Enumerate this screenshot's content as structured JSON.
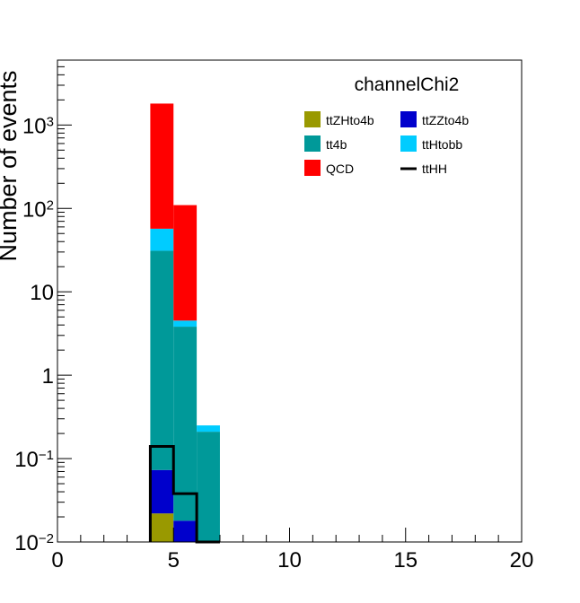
{
  "chart_data": {
    "type": "bar",
    "stacked": true,
    "title": "channelChi2",
    "xlabel": "",
    "ylabel": "Number of events",
    "xlim": [
      0,
      20
    ],
    "ylim": [
      0.01,
      6000
    ],
    "yscale": "log",
    "bin_width": 1,
    "x_ticks": [
      "0",
      "5",
      "10",
      "15",
      "20"
    ],
    "y_ticks": [
      {
        "value": 0.01,
        "base": "10",
        "exp": "−2"
      },
      {
        "value": 0.1,
        "base": "10",
        "exp": "−1"
      },
      {
        "value": 1,
        "base": "1",
        "exp": ""
      },
      {
        "value": 10,
        "base": "10",
        "exp": ""
      },
      {
        "value": 100,
        "base": "10",
        "exp": "2"
      },
      {
        "value": 1000,
        "base": "10",
        "exp": "3"
      }
    ],
    "grid": false,
    "legend_position": "top-right",
    "stack_order": [
      "ttZHto4b",
      "ttZZto4b",
      "tt4b",
      "ttHtobb",
      "QCD"
    ],
    "series": [
      {
        "name": "ttZHto4b",
        "color": "#999900",
        "bins": [
          {
            "x": 4,
            "value": 0.022
          },
          {
            "x": 5,
            "value": 0.0
          },
          {
            "x": 6,
            "value": 0.0
          }
        ]
      },
      {
        "name": "ttZZto4b",
        "color": "#0000cc",
        "bins": [
          {
            "x": 4,
            "value": 0.051
          },
          {
            "x": 5,
            "value": 0.018
          },
          {
            "x": 6,
            "value": 0.0
          }
        ]
      },
      {
        "name": "tt4b",
        "color": "#009999",
        "bins": [
          {
            "x": 4,
            "value": 31
          },
          {
            "x": 5,
            "value": 3.8
          },
          {
            "x": 6,
            "value": 0.21
          }
        ]
      },
      {
        "name": "ttHtobb",
        "color": "#00ccff",
        "bins": [
          {
            "x": 4,
            "value": 26
          },
          {
            "x": 5,
            "value": 0.7
          },
          {
            "x": 6,
            "value": 0.04
          }
        ]
      },
      {
        "name": "QCD",
        "color": "#ff0000",
        "bins": [
          {
            "x": 4,
            "value": 1750
          },
          {
            "x": 5,
            "value": 105
          },
          {
            "x": 6,
            "value": 0.0
          }
        ]
      }
    ],
    "overlay": {
      "name": "ttHH",
      "color": "#000000",
      "bins": [
        {
          "x": 4,
          "value": 0.14
        },
        {
          "x": 5,
          "value": 0.038
        },
        {
          "x": 6,
          "value": 0.0
        }
      ]
    },
    "legend": [
      {
        "label": "ttZHto4b",
        "color": "#999900",
        "style": "box"
      },
      {
        "label": "ttZZto4b",
        "color": "#0000cc",
        "style": "box"
      },
      {
        "label": "tt4b",
        "color": "#009999",
        "style": "box"
      },
      {
        "label": "ttHtobb",
        "color": "#00ccff",
        "style": "box"
      },
      {
        "label": "QCD",
        "color": "#ff0000",
        "style": "box"
      },
      {
        "label": "ttHH",
        "color": "#000000",
        "style": "line"
      }
    ]
  }
}
